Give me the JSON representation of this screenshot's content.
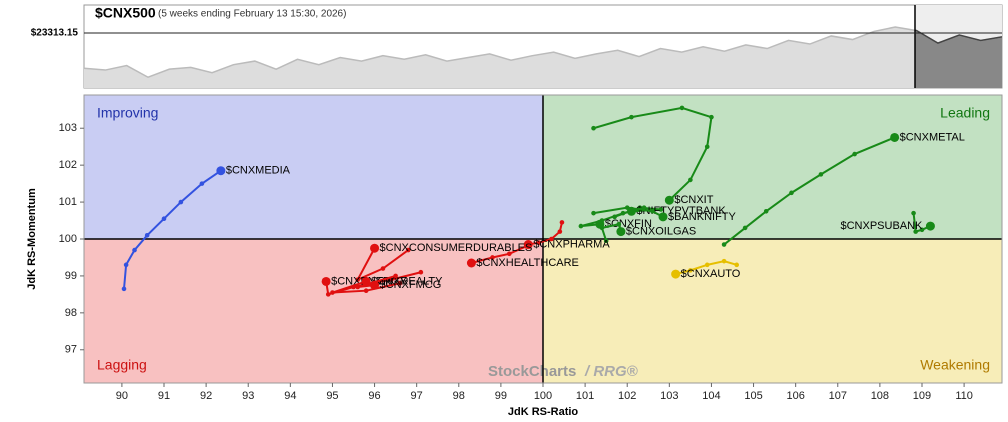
{
  "chart_data": {
    "type": "rrg",
    "title": "$CNX500",
    "subtitle": "(5 weeks ending February 13 15:30, 2026)",
    "xlabel": "JdK RS-Ratio",
    "ylabel": "JdK RS-Momentum",
    "xlim": [
      89.1,
      110.9
    ],
    "ylim": [
      96.1,
      103.9
    ],
    "xticks": [
      90,
      91,
      92,
      93,
      94,
      95,
      96,
      97,
      98,
      99,
      100,
      101,
      102,
      103,
      104,
      105,
      106,
      107,
      108,
      109,
      110
    ],
    "yticks": [
      97,
      98,
      99,
      100,
      101,
      102,
      103
    ],
    "center": [
      100,
      100
    ],
    "quadrants": {
      "improving": "Improving",
      "leading": "Leading",
      "lagging": "Lagging",
      "weakening": "Weakening"
    },
    "quadrant_colors": {
      "improving": "#c9cdf3",
      "leading": "#c2e1c2",
      "lagging": "#f8c1c1",
      "weakening": "#f7edb8"
    },
    "watermark": [
      "StockCharts",
      "/ RRG®"
    ],
    "price": {
      "ylim": [
        22700,
        23625
      ],
      "reference": {
        "value": 23313.15,
        "label": "$23313.15"
      },
      "values": [
        22920,
        22900,
        22950,
        22820,
        22910,
        22930,
        22870,
        22960,
        23000,
        22910,
        23020,
        22960,
        23040,
        23000,
        23060,
        23020,
        23070,
        23000,
        23040,
        23080,
        23010,
        23060,
        23100,
        23030,
        23080,
        23120,
        23050,
        23140,
        23100,
        23160,
        23110,
        23180,
        23140,
        23230,
        23190,
        23280,
        23240,
        23330,
        23380,
        23340,
        23200,
        23290,
        23230,
        23270
      ]
    },
    "series": [
      {
        "name": "$CNXMEDIA",
        "color": "#3352e0",
        "x": [
          90.05,
          90.1,
          90.3,
          90.6,
          91.0,
          91.4,
          91.9,
          92.35
        ],
        "y": [
          98.65,
          99.3,
          99.7,
          100.1,
          100.55,
          101.0,
          101.5,
          101.85
        ]
      },
      {
        "name": "$CNXMETAL",
        "color": "#188a18",
        "x": [
          104.3,
          104.8,
          105.3,
          105.9,
          106.6,
          107.4,
          108.35
        ],
        "y": [
          99.85,
          100.3,
          100.75,
          101.25,
          101.75,
          102.3,
          102.75
        ]
      },
      {
        "name": "$CNXPSUBANK",
        "color": "#188a18",
        "x": [
          108.8,
          108.85,
          109.0,
          109.2
        ],
        "y": [
          100.7,
          100.2,
          100.25,
          100.35
        ]
      },
      {
        "name": "$CNXIT",
        "color": "#188a18",
        "x": [
          101.2,
          102.1,
          103.3,
          104.0,
          103.9,
          103.5,
          103.0
        ],
        "y": [
          103.0,
          103.3,
          103.55,
          103.3,
          102.5,
          101.6,
          101.05
        ]
      },
      {
        "name": "$NIFTYPVTBANK",
        "color": "#188a18",
        "x": [
          101.7,
          102.3,
          102.8,
          102.1
        ],
        "y": [
          100.6,
          100.85,
          100.8,
          100.75
        ]
      },
      {
        "name": "$BANKNIFTY",
        "color": "#188a18",
        "x": [
          101.2,
          102.0,
          102.6,
          102.85
        ],
        "y": [
          100.7,
          100.85,
          100.75,
          100.6
        ]
      },
      {
        "name": "$CNXFIN",
        "color": "#188a18",
        "x": [
          102.4,
          101.9,
          101.4,
          100.9,
          101.35
        ],
        "y": [
          100.85,
          100.7,
          100.5,
          100.35,
          100.4
        ]
      },
      {
        "name": "$CNXOILGAS",
        "color": "#188a18",
        "x": [
          101.5,
          101.4,
          101.8,
          101.85
        ],
        "y": [
          99.95,
          100.3,
          100.4,
          100.2
        ]
      },
      {
        "name": "$CNXAUTO",
        "color": "#e6bf00",
        "x": [
          104.6,
          104.3,
          103.9,
          103.5,
          103.15
        ],
        "y": [
          99.3,
          99.4,
          99.3,
          99.15,
          99.05
        ]
      },
      {
        "name": "$CNXPHARMA",
        "color": "#e01010",
        "x": [
          100.45,
          100.4,
          100.2,
          99.9,
          99.65
        ],
        "y": [
          100.45,
          100.2,
          100.0,
          99.9,
          99.85
        ]
      },
      {
        "name": "$CNXHEALTHCARE",
        "color": "#e01010",
        "x": [
          99.6,
          99.2,
          98.8,
          98.3
        ],
        "y": [
          99.8,
          99.6,
          99.5,
          99.35
        ]
      },
      {
        "name": "$CNXCONSUMERDURABLES",
        "color": "#e01010",
        "x": [
          96.8,
          96.2,
          95.6,
          96.0
        ],
        "y": [
          99.7,
          99.2,
          98.9,
          99.75
        ]
      },
      {
        "name": "$CNXENERGY",
        "color": "#e01010",
        "x": [
          97.1,
          96.4,
          95.5,
          94.9,
          94.85
        ],
        "y": [
          99.1,
          98.9,
          98.7,
          98.5,
          98.85
        ]
      },
      {
        "name": "$CNXREALTY",
        "color": "#e01010",
        "x": [
          96.6,
          95.8,
          95.0,
          95.8
        ],
        "y": [
          98.8,
          98.6,
          98.55,
          98.85
        ]
      },
      {
        "name": "$CNXFMCG",
        "color": "#e01010",
        "x": [
          96.5,
          95.6,
          96.0
        ],
        "y": [
          99.0,
          98.7,
          98.75
        ]
      }
    ]
  }
}
